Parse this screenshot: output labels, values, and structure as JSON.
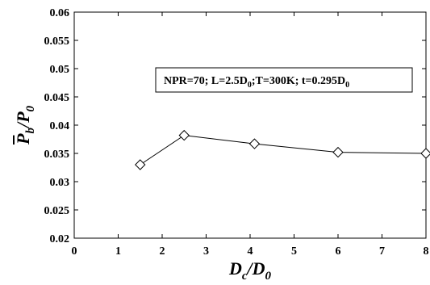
{
  "chart_data": {
    "type": "line",
    "x": [
      1.5,
      2.5,
      4.1,
      6.0,
      8.0
    ],
    "series": [
      {
        "values": [
          0.033,
          0.0382,
          0.0367,
          0.0352,
          0.035
        ]
      }
    ],
    "xlim": [
      0,
      8
    ],
    "ylim": [
      0.02,
      0.06
    ],
    "xticks": [
      0,
      1,
      2,
      3,
      4,
      5,
      6,
      7,
      8
    ],
    "yticks": [
      0.02,
      0.025,
      0.03,
      0.035,
      0.04,
      0.045,
      0.05,
      0.055,
      0.06
    ],
    "xtick_labels": [
      "0",
      "1",
      "2",
      "3",
      "4",
      "5",
      "6",
      "7",
      "8"
    ],
    "ytick_labels": [
      "0.02",
      "0.025",
      "0.03",
      "0.035",
      "0.04",
      "0.045",
      "0.05",
      "0.055",
      "0.06"
    ],
    "xlabel": "Dc/D0",
    "ylabel": "Pb/P0",
    "annotation": "NPR=70; L=2.5D0;T=300K; t=0.295D0",
    "marker": "diamond",
    "grid": false,
    "colors": {
      "line": "#000000",
      "marker_fill": "#ffffff",
      "axis": "#000000"
    }
  }
}
